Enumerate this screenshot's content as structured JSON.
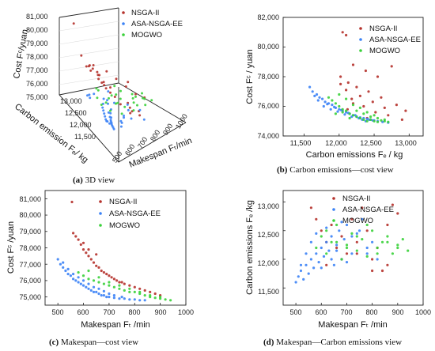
{
  "colors": {
    "nsga": "#b5312b",
    "asa": "#3b82f6",
    "mogwo": "#3ad13a",
    "axis": "#222222"
  },
  "legend": [
    "NSGA-II",
    "ASA-NSGA-EE",
    "MOGWO"
  ],
  "captions": {
    "a": {
      "tag": "(a)",
      "text": "3D view"
    },
    "b": {
      "tag": "(b)",
      "text": "Carbon emissions—cost view"
    },
    "c": {
      "tag": "(c)",
      "text": "Makespan—cost view"
    },
    "d": {
      "tag": "(d)",
      "text": "Makespan—Carbon emissions view"
    }
  },
  "chart_data": [
    {
      "type": "scatter",
      "view": "3d",
      "zlabel": "Cost Fᶜ/yuan",
      "ylabel": "Carbon emission Fₑ/ kg",
      "xlabel": "Makespan Fₜ/min",
      "z_ticks": [
        "81,000",
        "80,000",
        "79,000",
        "78,000",
        "77,000",
        "76,000",
        "75,000"
      ],
      "y_ticks": [
        "13,000",
        "12,500",
        "12,000",
        "11,500"
      ],
      "x_ticks": [
        "500",
        "600",
        "700",
        "800",
        "900",
        "1000"
      ]
    },
    {
      "type": "scatter",
      "xlabel": "Carbon emissions Fₑ / kg",
      "ylabel": "Cost Fᶜ / yuan",
      "xlim": [
        11200,
        13200
      ],
      "ylim": [
        74000,
        82000
      ],
      "x_ticks": [
        "11,500",
        "12,000",
        "12,500",
        "13,000"
      ],
      "y_ticks": [
        "74,000",
        "76,000",
        "78,000",
        "80,000",
        "82,000"
      ],
      "series": [
        {
          "name": "NSGA-II",
          "x": [
            12050,
            12100,
            12200,
            12380,
            12550,
            12750,
            12950,
            12020,
            12130,
            12250,
            12420,
            12600,
            12820,
            12100,
            12300,
            12480,
            12650,
            12180,
            12350,
            12520,
            12020,
            12200,
            12700,
            12900,
            12120,
            12400
          ],
          "y": [
            81000,
            80800,
            78800,
            78400,
            78000,
            78700,
            75700,
            78000,
            77600,
            77300,
            77000,
            76600,
            76100,
            77100,
            76700,
            76300,
            75900,
            76500,
            76000,
            75600,
            77500,
            76200,
            75400,
            75100,
            75800,
            75200
          ]
        },
        {
          "name": "ASA-NSGA-EE",
          "x": [
            11580,
            11620,
            11680,
            11720,
            11760,
            11800,
            11850,
            11900,
            11950,
            12000,
            12050,
            12100,
            12150,
            12200,
            12250,
            12300,
            12350,
            12400,
            12450,
            12500,
            12550,
            12620,
            12700,
            11650,
            11700,
            11780,
            11830,
            11880,
            11930,
            11980,
            12030,
            12080,
            12130,
            12180,
            12230,
            12280,
            12330,
            12380,
            12430,
            12480
          ],
          "y": [
            77300,
            77000,
            76800,
            76600,
            76500,
            76300,
            76200,
            76100,
            75900,
            75800,
            75700,
            75600,
            75500,
            75400,
            75300,
            75250,
            75200,
            75150,
            75100,
            75050,
            75000,
            74950,
            74900,
            76700,
            76400,
            76000,
            76150,
            75800,
            75950,
            75650,
            75750,
            75450,
            75550,
            75300,
            75400,
            75200,
            75100,
            75000,
            75100,
            75050
          ]
        },
        {
          "name": "MOGWO",
          "x": [
            11850,
            11900,
            11950,
            12000,
            12050,
            12100,
            12150,
            12200,
            12250,
            12300,
            12350,
            12400,
            12450,
            12500,
            12550,
            12600,
            12650,
            12700,
            12000,
            12100,
            12200,
            12300,
            12400,
            12500,
            11950,
            12050,
            12150,
            12250,
            12350,
            12450,
            12550,
            12650
          ],
          "y": [
            76600,
            76400,
            76200,
            76000,
            75800,
            75700,
            75500,
            75400,
            75300,
            75200,
            75100,
            75000,
            75100,
            75000,
            74950,
            75050,
            75000,
            74950,
            76800,
            76500,
            76100,
            75900,
            75600,
            75400,
            75500,
            75600,
            75200,
            75700,
            75500,
            75300,
            75200,
            75100
          ]
        }
      ]
    },
    {
      "type": "scatter",
      "xlabel": "Makespan Fₜ /min",
      "ylabel": "Cost Fᶜ /yuan",
      "xlim": [
        450,
        1000
      ],
      "ylim": [
        74500,
        81500
      ],
      "x_ticks": [
        "500",
        "600",
        "700",
        "800",
        "900",
        "1000"
      ],
      "y_ticks": [
        "75,000",
        "76,000",
        "77,000",
        "78,000",
        "79,000",
        "80,000",
        "81,000"
      ],
      "series": [
        {
          "name": "NSGA-II",
          "x": [
            555,
            560,
            570,
            580,
            590,
            600,
            610,
            620,
            630,
            640,
            650,
            660,
            670,
            680,
            690,
            700,
            710,
            720,
            730,
            740,
            750,
            760,
            780,
            800,
            820,
            840,
            860,
            880,
            900,
            600,
            620,
            650
          ],
          "y": [
            80800,
            78900,
            78700,
            78500,
            78200,
            77900,
            77700,
            77500,
            77300,
            77100,
            76900,
            76800,
            76600,
            76500,
            76400,
            76300,
            76200,
            76100,
            76000,
            75900,
            75900,
            75800,
            75700,
            75600,
            75500,
            75400,
            75300,
            75200,
            75100,
            78300,
            77900,
            77600
          ]
        },
        {
          "name": "ASA-NSGA-EE",
          "x": [
            500,
            510,
            520,
            530,
            540,
            550,
            560,
            570,
            580,
            590,
            600,
            610,
            620,
            630,
            640,
            650,
            660,
            670,
            680,
            690,
            700,
            720,
            740,
            760,
            780,
            800,
            820,
            840,
            520,
            540,
            560,
            580,
            600,
            620,
            640,
            660,
            680,
            700,
            720,
            750
          ],
          "y": [
            77300,
            77000,
            76800,
            76600,
            76400,
            76300,
            76100,
            76000,
            75900,
            75800,
            75700,
            75600,
            75500,
            75400,
            75300,
            75300,
            75200,
            75100,
            75100,
            75000,
            75000,
            74950,
            74900,
            74900,
            74850,
            74850,
            74800,
            74800,
            77100,
            76700,
            76400,
            76200,
            76000,
            75800,
            75600,
            75500,
            75350,
            75200,
            75100,
            75000
          ]
        },
        {
          "name": "MOGWO",
          "x": [
            580,
            600,
            620,
            640,
            660,
            680,
            700,
            720,
            740,
            760,
            780,
            800,
            820,
            840,
            860,
            880,
            900,
            920,
            940,
            620,
            660,
            700,
            740,
            780,
            820,
            860,
            900
          ],
          "y": [
            76500,
            76300,
            76100,
            76000,
            75900,
            75800,
            75700,
            75600,
            75500,
            75400,
            75300,
            75300,
            75200,
            75100,
            75000,
            74950,
            74900,
            74850,
            74800,
            76600,
            76200,
            75900,
            75700,
            75500,
            75300,
            75100,
            75000
          ]
        }
      ]
    },
    {
      "type": "scatter",
      "xlabel": "Makespan Fₜ /min",
      "ylabel": "Carbon emissions Fₑ /kg",
      "xlim": [
        450,
        1000
      ],
      "ylim": [
        11200,
        13200
      ],
      "x_ticks": [
        "500",
        "600",
        "700",
        "800",
        "900",
        "1000"
      ],
      "y_ticks": [
        "11,500",
        "12,000",
        "12,500",
        "13,000"
      ],
      "series": [
        {
          "name": "NSGA-II",
          "x": [
            560,
            580,
            600,
            620,
            640,
            660,
            680,
            700,
            720,
            740,
            760,
            780,
            800,
            820,
            840,
            860,
            880,
            900,
            620,
            680,
            740,
            800,
            860
          ],
          "y": [
            12900,
            12700,
            12500,
            12300,
            12600,
            12200,
            12400,
            12100,
            12700,
            12300,
            12900,
            12500,
            12000,
            12200,
            11800,
            12600,
            12950,
            12800,
            11900,
            12000,
            12100,
            11800,
            11900
          ]
        },
        {
          "name": "ASA-NSGA-EE",
          "x": [
            500,
            510,
            520,
            530,
            540,
            550,
            560,
            570,
            580,
            590,
            600,
            610,
            620,
            630,
            640,
            650,
            660,
            670,
            680,
            690,
            700,
            720,
            740,
            760,
            780,
            800,
            520,
            540,
            560,
            580,
            600,
            620,
            640,
            660,
            680,
            700,
            720,
            750,
            780,
            820
          ],
          "y": [
            11600,
            11700,
            11800,
            11650,
            11900,
            11750,
            12000,
            11850,
            12100,
            11950,
            12200,
            12050,
            12300,
            12150,
            12400,
            11900,
            12250,
            12500,
            12000,
            12350,
            12600,
            12100,
            12450,
            12700,
            12200,
            12300,
            11900,
            12100,
            12300,
            12450,
            11850,
            12550,
            12000,
            12150,
            12650,
            11950,
            12400,
            12500,
            12100,
            12000
          ]
        },
        {
          "name": "MOGWO",
          "x": [
            580,
            600,
            620,
            640,
            660,
            680,
            700,
            720,
            740,
            760,
            780,
            800,
            820,
            840,
            860,
            880,
            900,
            920,
            940,
            620,
            660,
            700,
            740,
            780,
            820,
            860,
            900
          ],
          "y": [
            12200,
            12400,
            12100,
            12300,
            12600,
            12000,
            12250,
            12450,
            12150,
            12350,
            12050,
            12500,
            12200,
            12300,
            12400,
            12100,
            12250,
            12350,
            12150,
            12500,
            12300,
            12200,
            12400,
            12600,
            12100,
            12300,
            12200
          ]
        }
      ]
    }
  ]
}
